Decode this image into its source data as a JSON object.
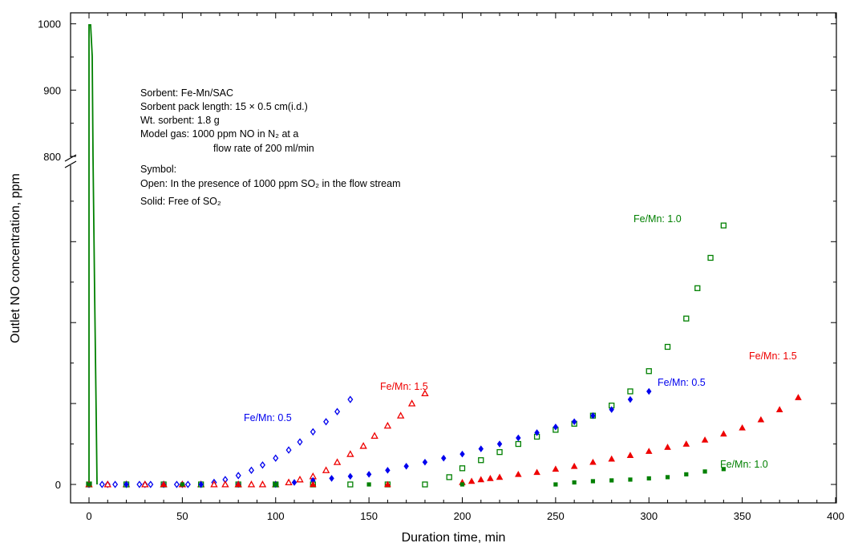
{
  "chart_data": {
    "type": "scatter",
    "xlabel": "Duration time, min",
    "ylabel": "Outlet NO concentration, ppm",
    "xlim": [
      -10,
      400
    ],
    "x_ticks": [
      "0",
      "50",
      "100",
      "150",
      "200",
      "250",
      "300",
      "350",
      "400"
    ],
    "y_ticks": [
      "0",
      "800",
      "900",
      "1000"
    ],
    "y_axis_break": "between 0 and 800",
    "colors": {
      "blue": "#0000ee",
      "red": "#ee0000",
      "green": "#008000"
    },
    "annotation_lines": [
      "Sorbent: Fe-Mn/SAC",
      "Sorbent pack length: 15 × 0.5 cm(i.d.)",
      "Wt. sorbent:  1.8 g",
      "Model gas:   1000 ppm NO in N₂ at a",
      "flow rate of 200 ml/min",
      "Symbol:",
      "Open:  In the presence of 1000 ppm SO₂ in the flow stream",
      "Solid:   Free of SO₂"
    ],
    "series_labels": [
      {
        "text": "Fe/Mn: 0.5",
        "color": "#0000ee"
      },
      {
        "text": "Fe/Mn: 1.5",
        "color": "#ee0000"
      },
      {
        "text": "Fe/Mn: 1.0",
        "color": "#008000"
      },
      {
        "text": "Fe/Mn: 0.5",
        "color": "#0000ee"
      },
      {
        "text": "Fe/Mn: 1.5",
        "color": "#ee0000"
      },
      {
        "text": "Fe/Mn: 1.0",
        "color": "#008000"
      }
    ],
    "series": [
      {
        "color": "#0000ee",
        "marker": "diamond",
        "filled": false,
        "x": [
          0,
          7,
          10,
          14,
          20,
          27,
          30,
          33,
          40,
          47,
          50,
          53,
          60,
          67,
          73,
          80,
          87,
          93,
          100,
          107,
          113,
          120,
          127,
          133,
          140
        ],
        "y": [
          0,
          0,
          0,
          0,
          0,
          0,
          0,
          0,
          0,
          0,
          0,
          0,
          0,
          5,
          12,
          22,
          35,
          48,
          65,
          85,
          105,
          130,
          155,
          180,
          210
        ]
      },
      {
        "color": "#ee0000",
        "marker": "triangle",
        "filled": false,
        "x": [
          0,
          10,
          20,
          30,
          40,
          50,
          60,
          67,
          73,
          80,
          87,
          93,
          100,
          107,
          113,
          120,
          127,
          133,
          140,
          147,
          153,
          160,
          167,
          173,
          180
        ],
        "y": [
          0,
          0,
          0,
          0,
          0,
          0,
          0,
          0,
          0,
          0,
          0,
          0,
          0,
          5,
          12,
          20,
          35,
          55,
          75,
          95,
          120,
          145,
          170,
          200,
          225
        ]
      },
      {
        "color": "#008000",
        "marker": "square",
        "filled": false,
        "x": [
          0,
          20,
          40,
          60,
          80,
          100,
          120,
          140,
          160,
          180,
          193,
          200,
          210,
          220,
          230,
          240,
          250,
          260,
          270,
          280,
          290,
          300,
          310,
          320,
          326,
          333,
          340
        ],
        "y": [
          0,
          0,
          0,
          0,
          0,
          0,
          0,
          0,
          0,
          0,
          18,
          40,
          60,
          80,
          100,
          118,
          135,
          150,
          170,
          195,
          230,
          280,
          340,
          410,
          485,
          560,
          640
        ]
      },
      {
        "color": "#0000ee",
        "marker": "diamond",
        "filled": true,
        "x": [
          0,
          20,
          40,
          60,
          80,
          100,
          110,
          120,
          130,
          140,
          150,
          160,
          170,
          180,
          190,
          200,
          210,
          220,
          230,
          240,
          250,
          260,
          270,
          280,
          290,
          300
        ],
        "y": [
          0,
          0,
          0,
          0,
          0,
          0,
          5,
          10,
          15,
          20,
          25,
          35,
          45,
          55,
          65,
          75,
          88,
          100,
          115,
          128,
          142,
          155,
          170,
          185,
          210,
          230
        ]
      },
      {
        "color": "#ee0000",
        "marker": "triangle",
        "filled": true,
        "x": [
          0,
          40,
          80,
          120,
          160,
          200,
          205,
          210,
          215,
          220,
          230,
          240,
          250,
          260,
          270,
          280,
          290,
          300,
          310,
          320,
          330,
          340,
          350,
          360,
          370,
          380
        ],
        "y": [
          0,
          0,
          0,
          0,
          0,
          5,
          8,
          12,
          15,
          18,
          25,
          30,
          38,
          45,
          55,
          63,
          72,
          82,
          92,
          100,
          110,
          125,
          140,
          160,
          185,
          215
        ]
      },
      {
        "color": "#008000",
        "marker": "square",
        "filled": true,
        "x": [
          0,
          50,
          100,
          150,
          200,
          250,
          260,
          270,
          280,
          290,
          300,
          310,
          320,
          330,
          340
        ],
        "y": [
          0,
          0,
          0,
          0,
          0,
          0,
          5,
          8,
          10,
          12,
          15,
          18,
          25,
          32,
          38
        ]
      }
    ]
  }
}
